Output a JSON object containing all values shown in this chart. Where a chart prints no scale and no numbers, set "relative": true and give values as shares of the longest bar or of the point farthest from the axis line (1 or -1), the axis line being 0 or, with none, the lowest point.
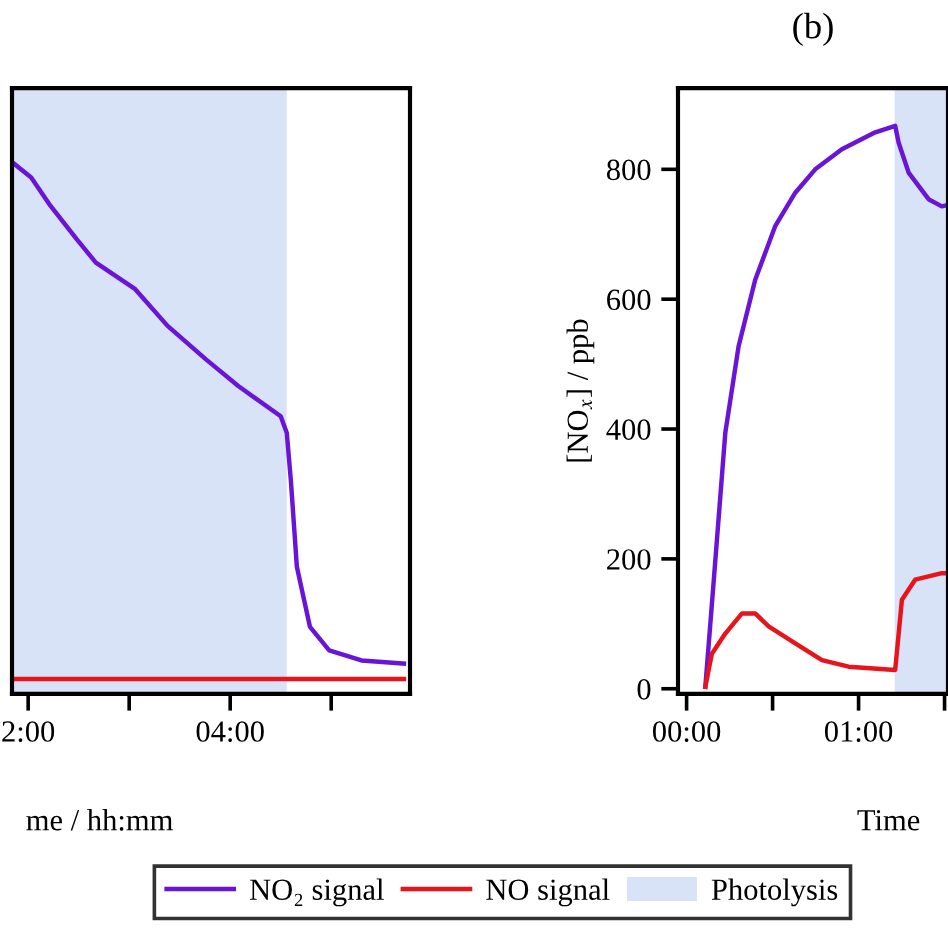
{
  "chart_data": [
    {
      "type": "line",
      "relative": true,
      "xlabel": "me / hh:mm",
      "xlim": [
        1.84,
        5.78
      ],
      "xticks": [
        {
          "value": 2,
          "label": "2:00"
        },
        {
          "value": 3,
          "label": null
        },
        {
          "value": 4,
          "label": "04:00"
        },
        {
          "value": 5,
          "label": null
        }
      ],
      "series": [
        {
          "color": "#6a14d8",
          "x": [
            1.84,
            2.03,
            2.22,
            2.48,
            2.67,
            3.06,
            3.38,
            3.76,
            4.08,
            4.5,
            4.56,
            4.6,
            4.66,
            4.79,
            4.98,
            5.3,
            5.72
          ],
          "values": [
            1.0,
            0.971,
            0.918,
            0.855,
            0.811,
            0.761,
            0.692,
            0.629,
            0.579,
            0.522,
            0.491,
            0.403,
            0.239,
            0.126,
            0.082,
            0.063,
            0.057
          ]
        },
        {
          "color": "#e8141c",
          "x": [
            1.84,
            5.72
          ],
          "values": [
            0.028,
            0.028
          ]
        }
      ],
      "bands": [
        {
          "axis": "x",
          "from": 1.84,
          "to": 4.56,
          "color": "#d9e3f8"
        }
      ],
      "grid": false,
      "legend": false,
      "line_style": "solid",
      "marker": "none"
    },
    {
      "type": "line",
      "title": "(b)",
      "xlabel": "Time",
      "ylabel": "[NO$_{x}$] / ppb",
      "xlim": [
        -0.05,
        1.52
      ],
      "ylim": [
        -8,
        925
      ],
      "xticks": [
        {
          "value": 0,
          "label": "00:00"
        },
        {
          "value": 0.5,
          "label": null
        },
        {
          "value": 1,
          "label": "01:00"
        },
        {
          "value": 1.5,
          "label": null
        }
      ],
      "yticks": [
        0,
        200,
        400,
        600,
        800
      ],
      "series": [
        {
          "name": "NO₂ signal",
          "color": "#6a14d8",
          "x": [
            0.109,
            0.155,
            0.225,
            0.302,
            0.399,
            0.516,
            0.632,
            0.748,
            0.903,
            1.097,
            1.213,
            1.233,
            1.291,
            1.407,
            1.484,
            1.52
          ],
          "values": [
            3,
            157,
            394,
            527,
            630,
            713,
            764,
            800,
            831,
            857,
            867,
            841,
            795,
            754,
            743,
            745
          ]
        },
        {
          "name": "NO signal",
          "color": "#e8141c",
          "x": [
            0.109,
            0.147,
            0.225,
            0.322,
            0.399,
            0.477,
            0.632,
            0.787,
            0.942,
            1.213,
            1.252,
            1.329,
            1.484,
            1.52
          ],
          "values": [
            3,
            54,
            85,
            116,
            116,
            96,
            70,
            44,
            34,
            29,
            137,
            168,
            178,
            178
          ]
        }
      ],
      "bands": [
        {
          "axis": "x",
          "from": 1.21,
          "to": 1.52,
          "label": "Photolysis",
          "color": "#d9e3f8"
        }
      ],
      "grid": false,
      "legend": "bottom",
      "line_style": "solid",
      "marker": "none"
    }
  ]
}
